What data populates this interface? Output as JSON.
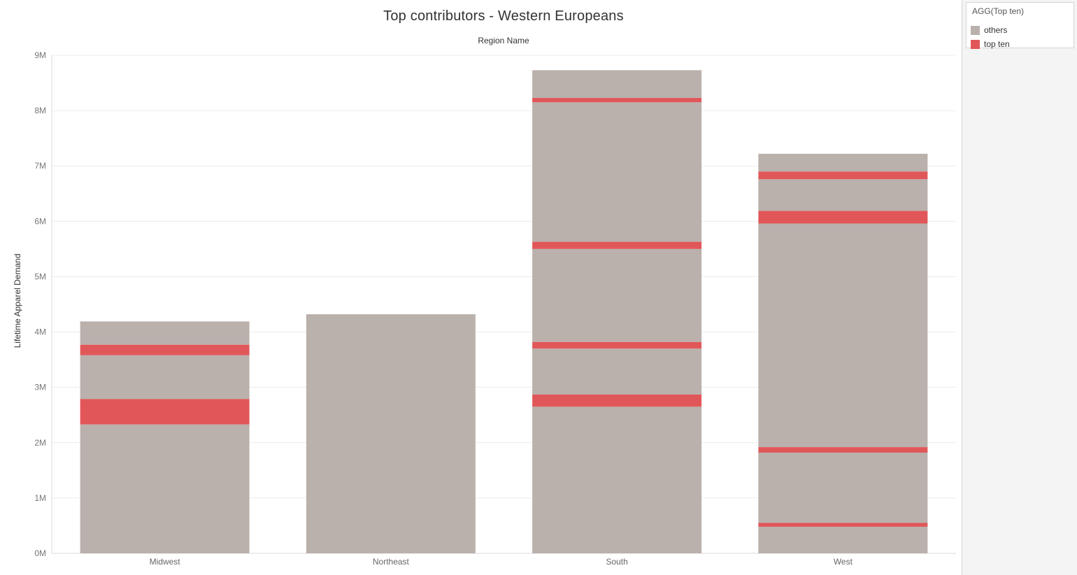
{
  "chart_data": {
    "type": "bar",
    "stacked": true,
    "title": "Top contributors - Western Europeans",
    "subtitle": "Region Name",
    "xlabel": "",
    "ylabel": "Lifetime Apparel Demand",
    "ylim": [
      0,
      9000000
    ],
    "yticks": [
      {
        "value": 0,
        "label": "0M"
      },
      {
        "value": 1000000,
        "label": "1M"
      },
      {
        "value": 2000000,
        "label": "2M"
      },
      {
        "value": 3000000,
        "label": "3M"
      },
      {
        "value": 4000000,
        "label": "4M"
      },
      {
        "value": 5000000,
        "label": "5M"
      },
      {
        "value": 6000000,
        "label": "6M"
      },
      {
        "value": 7000000,
        "label": "7M"
      },
      {
        "value": 8000000,
        "label": "8M"
      },
      {
        "value": 9000000,
        "label": "9M"
      }
    ],
    "grid": true,
    "legend_position": "top-right",
    "categories": [
      "Midwest",
      "Northeast",
      "South",
      "West"
    ],
    "series_colors": {
      "others": "#bab0ac",
      "top ten": "#e15759"
    },
    "stacks": [
      {
        "category": "Midwest",
        "segments": [
          {
            "series": "others",
            "value": 2330000
          },
          {
            "series": "top ten",
            "value": 460000
          },
          {
            "series": "others",
            "value": 790000
          },
          {
            "series": "top ten",
            "value": 190000
          },
          {
            "series": "others",
            "value": 420000
          }
        ]
      },
      {
        "category": "Northeast",
        "segments": [
          {
            "series": "others",
            "value": 4320000
          }
        ]
      },
      {
        "category": "South",
        "segments": [
          {
            "series": "others",
            "value": 2650000
          },
          {
            "series": "top ten",
            "value": 220000
          },
          {
            "series": "others",
            "value": 830000
          },
          {
            "series": "top ten",
            "value": 120000
          },
          {
            "series": "others",
            "value": 1680000
          },
          {
            "series": "top ten",
            "value": 130000
          },
          {
            "series": "others",
            "value": 2520000
          },
          {
            "series": "top ten",
            "value": 80000
          },
          {
            "series": "others",
            "value": 500000
          }
        ]
      },
      {
        "category": "West",
        "segments": [
          {
            "series": "others",
            "value": 480000
          },
          {
            "series": "top ten",
            "value": 70000
          },
          {
            "series": "others",
            "value": 1270000
          },
          {
            "series": "top ten",
            "value": 100000
          },
          {
            "series": "others",
            "value": 4040000
          },
          {
            "series": "top ten",
            "value": 230000
          },
          {
            "series": "others",
            "value": 570000
          },
          {
            "series": "top ten",
            "value": 140000
          },
          {
            "series": "others",
            "value": 320000
          }
        ]
      }
    ]
  },
  "legend": {
    "title": "AGG(Top ten)",
    "items": [
      {
        "label": "others",
        "color": "#bab0ac"
      },
      {
        "label": "top ten",
        "color": "#e15759"
      }
    ]
  }
}
